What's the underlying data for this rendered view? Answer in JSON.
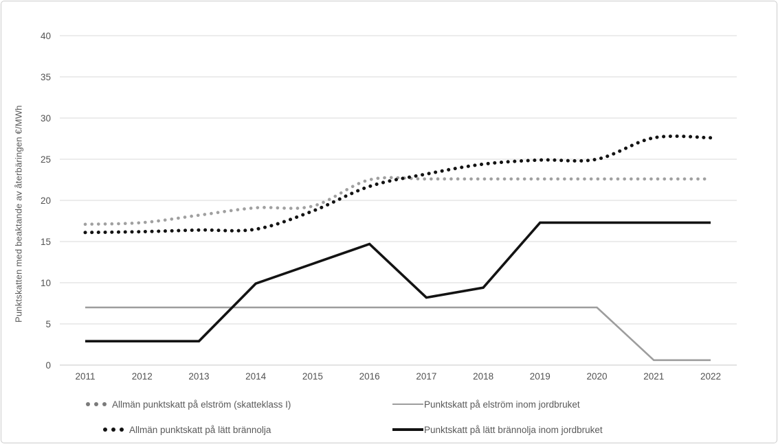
{
  "chart_data": {
    "type": "line",
    "title": "",
    "xlabel": "",
    "ylabel": "Punktskatten med beaktande av återbäringen €/MWh",
    "ylim": [
      0,
      40
    ],
    "ytick_step": 5,
    "grid": true,
    "legend_position": "bottom",
    "categories": [
      "2011",
      "2012",
      "2013",
      "2014",
      "2015",
      "2016",
      "2017",
      "2018",
      "2019",
      "2020",
      "2021",
      "2022"
    ],
    "series": [
      {
        "name": "Allmän punktskatt på elström (skatteklass I)",
        "style": "dotted",
        "smooth": true,
        "color": "#a0a0a0",
        "legend_color": "#7b7b7b",
        "width": 4.6,
        "values": [
          17.1,
          17.3,
          18.2,
          19.1,
          19.3,
          22.5,
          22.6,
          22.6,
          22.6,
          22.6,
          22.6,
          22.6
        ]
      },
      {
        "name": "Punktskatt på elström inom jordbruket",
        "style": "solid",
        "smooth": false,
        "color": "#9d9d9d",
        "legend_color": "#9d9d9d",
        "width": 2.6,
        "values": [
          7.0,
          7.0,
          7.0,
          7.0,
          7.0,
          7.0,
          7.0,
          7.0,
          7.0,
          7.0,
          0.6,
          0.6
        ]
      },
      {
        "name": "Allmän punktskatt på lätt brännolja",
        "style": "dotted",
        "smooth": true,
        "color": "#131313",
        "legend_color": "#131313",
        "width": 5.0,
        "values": [
          16.1,
          16.2,
          16.4,
          16.5,
          18.7,
          21.7,
          23.2,
          24.4,
          24.9,
          25.0,
          27.6,
          27.6
        ]
      },
      {
        "name": "Punktskatt på lätt brännolja inom jordbruket",
        "style": "solid",
        "smooth": false,
        "color": "#131313",
        "legend_color": "#131313",
        "width": 3.6,
        "values": [
          2.9,
          2.9,
          2.9,
          9.9,
          12.3,
          14.7,
          8.2,
          9.4,
          17.3,
          17.3,
          17.3,
          17.3
        ]
      }
    ],
    "legend_layout": [
      0,
      1,
      2,
      3
    ]
  },
  "axis": {
    "tick_color_hex": "#525252",
    "gridline_color_hex": "#d9d9d9"
  }
}
